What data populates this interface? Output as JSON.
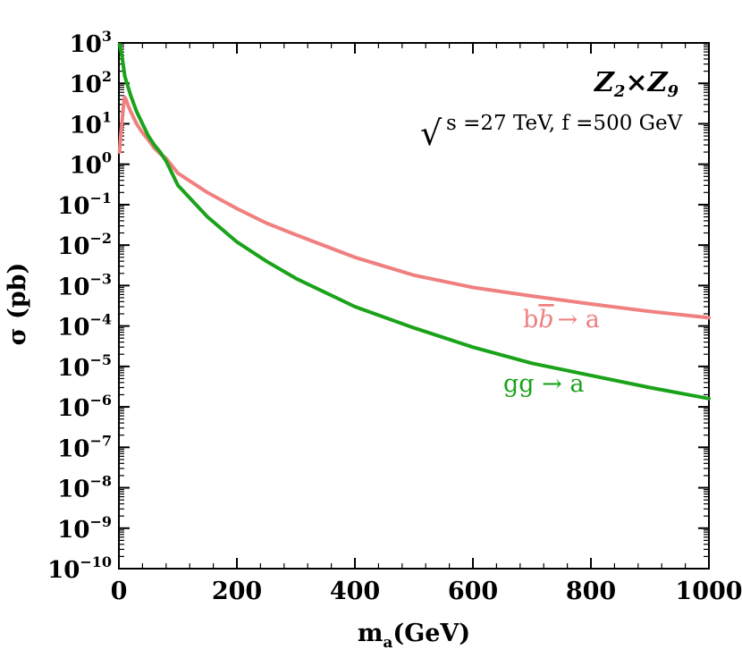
{
  "chart_data": {
    "type": "line",
    "title": "",
    "xlabel_main": "m",
    "xlabel_sub": "a",
    "xlabel_rest": "(GeV)",
    "ylabel": "σ (pb)",
    "xlim": [
      0,
      1000
    ],
    "ylim_log10": [
      -10,
      3
    ],
    "yscale": "log",
    "x_ticks": [
      0,
      200,
      400,
      600,
      800,
      1000
    ],
    "x_tick_labels": [
      "0",
      "200",
      "400",
      "600",
      "800",
      "1000"
    ],
    "y_tick_exponents": [
      3,
      2,
      1,
      0,
      -1,
      -2,
      -3,
      -4,
      -5,
      -6,
      -7,
      -8,
      -9,
      -10
    ],
    "y_tick_labels": [
      "10",
      "10",
      "10",
      "10",
      "10",
      "10",
      "10",
      "10",
      "10",
      "10",
      "10",
      "10",
      "10",
      "10"
    ],
    "y_tick_sups": [
      "3",
      "2",
      "1",
      "0",
      "−1",
      "−2",
      "−3",
      "−4",
      "−5",
      "−6",
      "−7",
      "−8",
      "−9",
      "−10"
    ],
    "grid": false,
    "annotations": {
      "model_main": "Z",
      "model_sub1": "2",
      "model_times": "×",
      "model_z2": "Z",
      "model_sub2": "9",
      "energy_sqrt": "√",
      "energy_text": "s =27 TeV, f =500 GeV"
    },
    "series": [
      {
        "name": "bb̄ → a",
        "label_parts": [
          "b",
          "b",
          "→ a"
        ],
        "color": "#f08080",
        "x": [
          1,
          3,
          5,
          8,
          10,
          12,
          15,
          20,
          30,
          40,
          50,
          60,
          70,
          80,
          100,
          150,
          200,
          250,
          300,
          400,
          500,
          600,
          700,
          800,
          900,
          1000
        ],
        "y": [
          2.0,
          5.0,
          10.0,
          30.0,
          45.0,
          40.0,
          30.0,
          20.0,
          10.0,
          6.0,
          4.0,
          2.5,
          1.8,
          1.4,
          0.6,
          0.2,
          0.08,
          0.035,
          0.018,
          0.005,
          0.0018,
          0.0009,
          0.00055,
          0.00035,
          0.00023,
          0.00016
        ]
      },
      {
        "name": "gg → a",
        "label_parts": [
          "gg → a"
        ],
        "color": "#1aa31a",
        "x": [
          1,
          2,
          5,
          10,
          20,
          30,
          40,
          50,
          60,
          70,
          80,
          100,
          150,
          200,
          250,
          300,
          400,
          500,
          600,
          700,
          800,
          900,
          1000
        ],
        "y": [
          900,
          800,
          500,
          150,
          50,
          20,
          10,
          5,
          3,
          2,
          1.2,
          0.3,
          0.05,
          0.012,
          0.004,
          0.0015,
          0.0003,
          9e-05,
          3e-05,
          1.2e-05,
          6e-06,
          3e-06,
          1.6e-06
        ]
      }
    ]
  }
}
